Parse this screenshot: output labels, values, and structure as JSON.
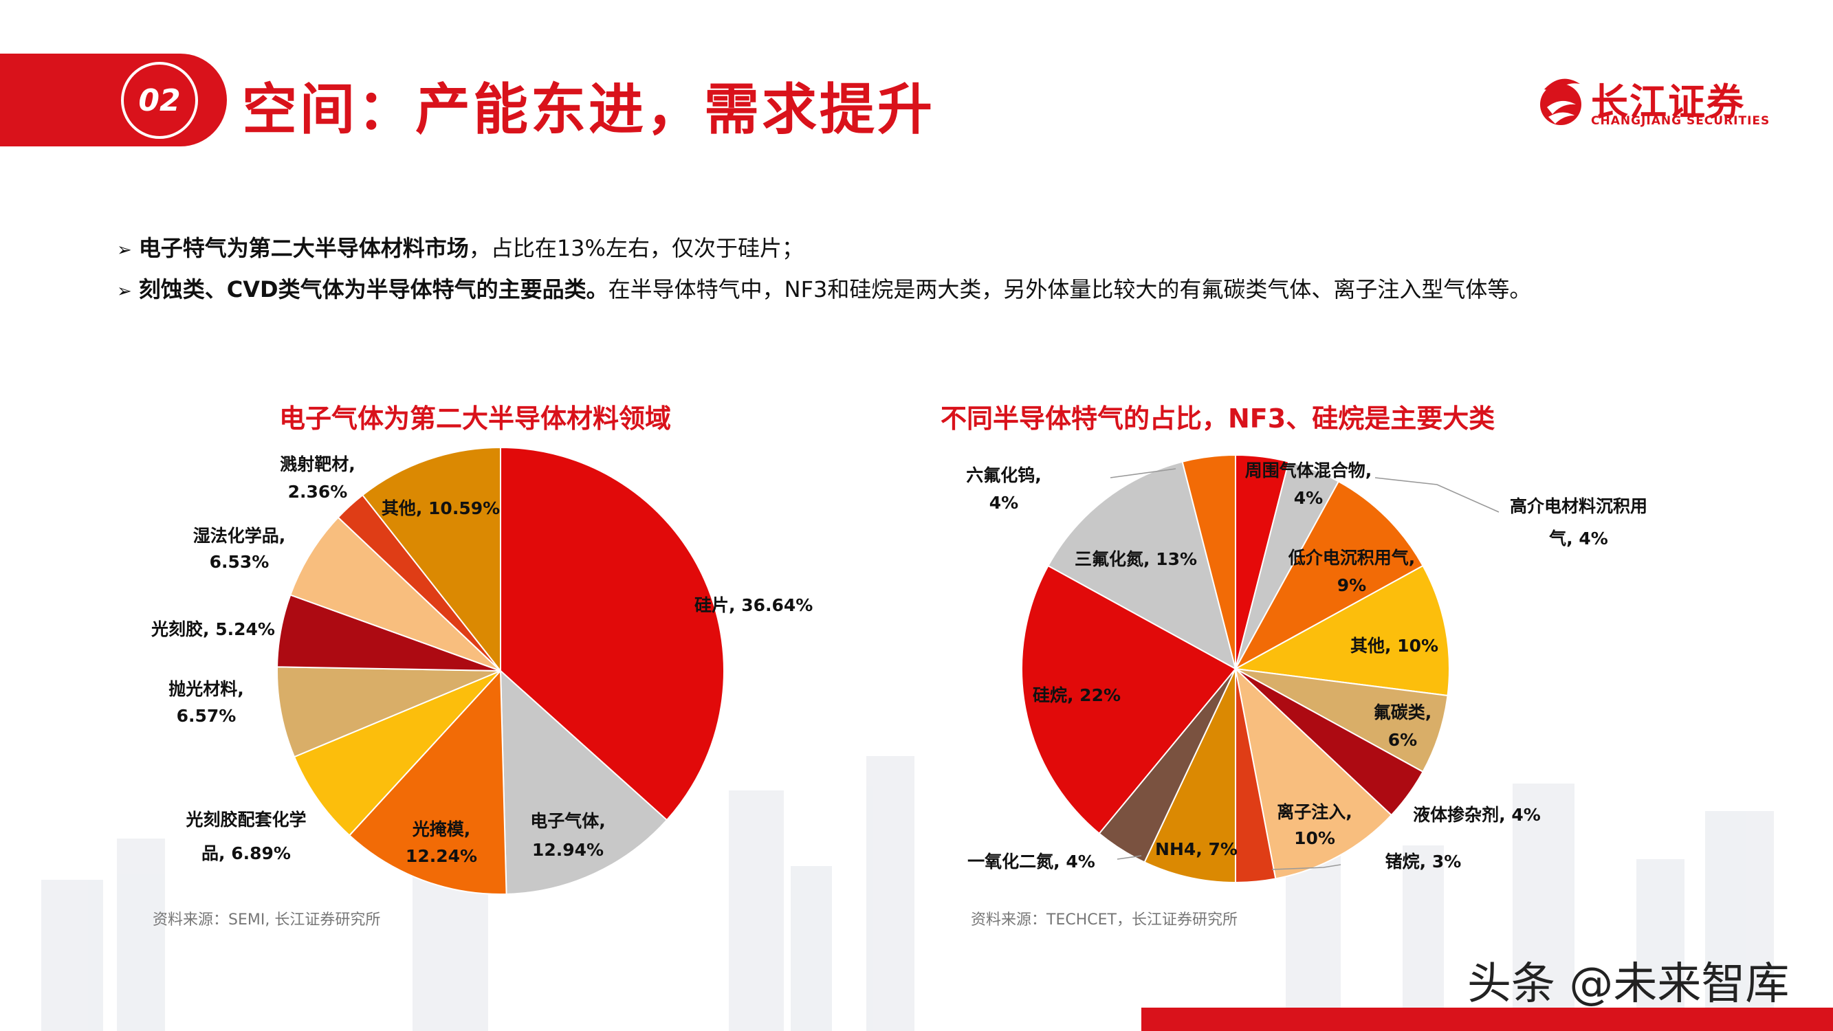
{
  "header": {
    "slide_number": "02",
    "title": "空间：产能东进，需求提升",
    "logo_cn": "长江证券",
    "logo_en": "CHANGJIANG SECURITIES",
    "accent_color": "#d9121b"
  },
  "bullets": [
    {
      "bold": "电子特气为第二大半导体材料市场",
      "text": "，占比在13%左右，仅次于硅片；"
    },
    {
      "bold": "刻蚀类、CVD类气体为半导体特气的主要品类。",
      "text": "在半导体特气中，NF3和硅烷是两大类，另外体量比较大的有氟碳类气体、离子注入型气体等。"
    }
  ],
  "chart_data": [
    {
      "type": "pie",
      "title": "电子气体为第二大半导体材料领域",
      "slices": [
        {
          "label": "硅片",
          "value": 36.64,
          "display": "硅片, 36.64%",
          "color": "#e10a0a"
        },
        {
          "label": "电子气体",
          "value": 12.94,
          "display": "电子气体, 12.94%",
          "color": "#c8c8c8"
        },
        {
          "label": "光掩模",
          "value": 12.24,
          "display": "光掩模, 12.24%",
          "color": "#f26b06"
        },
        {
          "label": "光刻胶配套化学品",
          "value": 6.89,
          "display": "光刻胶配套化学品, 6.89%",
          "color": "#fcbe0c"
        },
        {
          "label": "抛光材料",
          "value": 6.57,
          "display": "抛光材料, 6.57%",
          "color": "#d9ae68"
        },
        {
          "label": "光刻胶",
          "value": 5.24,
          "display": "光刻胶, 5.24%",
          "color": "#ad0a12"
        },
        {
          "label": "湿法化学品",
          "value": 6.53,
          "display": "湿法化学品, 6.53%",
          "color": "#f8be7e"
        },
        {
          "label": "溅射靶材",
          "value": 2.36,
          "display": "溅射靶材, 2.36%",
          "color": "#df3d16"
        },
        {
          "label": "其他",
          "value": 10.59,
          "display": "其他, 10.59%",
          "color": "#db8902"
        }
      ],
      "source": "资料来源：SEMI, 长江证券研究所"
    },
    {
      "type": "pie",
      "title": "不同半导体特气的占比，NF3、硅烷是主要大类",
      "slices": [
        {
          "label": "周围气体混合物",
          "value": 4,
          "display": "周围气体混合物, 4%",
          "color": "#e50a0a"
        },
        {
          "label": "高介电材料沉积用气",
          "value": 4,
          "display": "高介电材料沉积用气, 4%",
          "color": "#c8c8c8"
        },
        {
          "label": "低介电沉积用气",
          "value": 9,
          "display": "低介电沉积用气, 9%",
          "color": "#f26b06"
        },
        {
          "label": "其他",
          "value": 10,
          "display": "其他, 10%",
          "color": "#fcbe0c"
        },
        {
          "label": "氟碳类",
          "value": 6,
          "display": "氟碳类, 6%",
          "color": "#d9ae68"
        },
        {
          "label": "液体掺杂剂",
          "value": 4,
          "display": "液体掺杂剂, 4%",
          "color": "#ad0a12"
        },
        {
          "label": "离子注入",
          "value": 10,
          "display": "离子注入, 10%",
          "color": "#f8be7e"
        },
        {
          "label": "锗烷",
          "value": 3,
          "display": "锗烷, 3%",
          "color": "#df3d16"
        },
        {
          "label": "NH4",
          "value": 7,
          "display": "NH4, 7%",
          "color": "#db8902"
        },
        {
          "label": "一氧化二氮",
          "value": 4,
          "display": "一氧化二氮, 4%",
          "color": "#7a5240"
        },
        {
          "label": "硅烷",
          "value": 22,
          "display": "硅烷, 22%",
          "color": "#e10a0a"
        },
        {
          "label": "三氟化氮",
          "value": 13,
          "display": "三氟化氮, 13%",
          "color": "#c8c8c8"
        },
        {
          "label": "六氟化钨",
          "value": 4,
          "display": "六氟化钨, 4%",
          "color": "#f26b06"
        }
      ],
      "source": "资料来源：TECHCET，长江证券研究所"
    }
  ],
  "labels": {
    "c1": {
      "silicon": [
        "硅片, 36.64%"
      ],
      "gas": [
        "电子气体,",
        "12.94%"
      ],
      "mask": [
        "光掩模,",
        "12.24%"
      ],
      "resist_chem": [
        "光刻胶配套化学",
        "品, 6.89%"
      ],
      "polish": [
        "抛光材料,",
        "6.57%"
      ],
      "resist": [
        "光刻胶, 5.24%"
      ],
      "wet": [
        "湿法化学品,",
        "6.53%"
      ],
      "target": [
        "溅射靶材,",
        "2.36%"
      ],
      "other": [
        "其他, 10.59%"
      ]
    },
    "c2": {
      "ambient": [
        "周围气体混合物,",
        "4%"
      ],
      "highk": [
        "高介电材料沉积用",
        "气, 4%"
      ],
      "lowk": [
        "低介电沉积用气,",
        "9%"
      ],
      "other": [
        "其他, 10%"
      ],
      "fluoro": [
        "氟碳类,",
        "6%"
      ],
      "dopant": [
        "液体掺杂剂, 4%"
      ],
      "implant": [
        "离子注入,",
        "10%"
      ],
      "germane": [
        "锗烷, 3%"
      ],
      "nh4": [
        "NH4, 7%"
      ],
      "n2o": [
        "一氧化二氮, 4%"
      ],
      "silane": [
        "硅烷, 22%"
      ],
      "nf3": [
        "三氟化氮, 13%"
      ],
      "wf6": [
        "六氟化钨,",
        "4%"
      ]
    }
  },
  "watermark": "头条 @未来智库"
}
